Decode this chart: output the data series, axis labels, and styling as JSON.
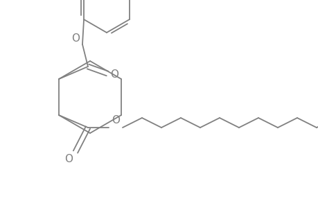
{
  "background_color": "#ffffff",
  "line_color": "#808080",
  "line_width": 1.3,
  "figsize": [
    4.6,
    3.0
  ],
  "dpi": 100,
  "xlim": [
    0,
    460
  ],
  "ylim": [
    0,
    300
  ]
}
